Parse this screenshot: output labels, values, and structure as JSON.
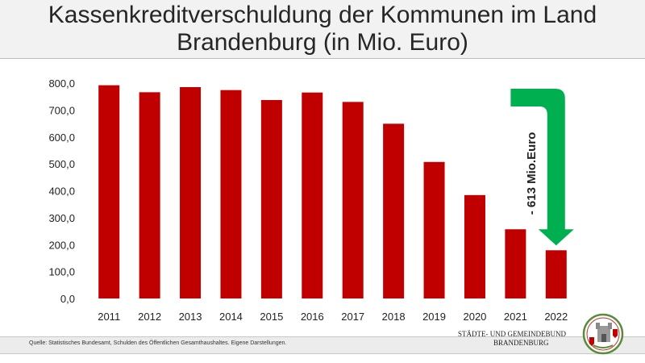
{
  "title": {
    "line1": "Kassenkreditverschuldung der Kommunen im Land",
    "line2": "Brandenburg (in Mio. Euro)"
  },
  "chart_data": {
    "type": "bar",
    "categories": [
      "2011",
      "2012",
      "2013",
      "2014",
      "2015",
      "2016",
      "2017",
      "2018",
      "2019",
      "2020",
      "2021",
      "2022"
    ],
    "values": [
      792,
      766,
      785,
      774,
      737,
      765,
      730,
      649,
      507,
      384,
      257,
      179
    ],
    "ylim": [
      0,
      800
    ],
    "yticks": [
      0,
      100,
      200,
      300,
      400,
      500,
      600,
      700,
      800
    ],
    "ytick_labels": [
      "0,0",
      "100,0",
      "200,0",
      "300,0",
      "400,0",
      "500,0",
      "600,0",
      "700,0",
      "800,0"
    ],
    "grid": false,
    "bar_color": "#c00000",
    "annotation": {
      "text": "- 613 Mio.Euro",
      "arrow_color": "#00b050",
      "from_category": "2021",
      "to_category": "2022"
    }
  },
  "footer": {
    "source": "Quelle: Statistisches Bundesamt, Schulden des Öffentlichen Gesamthaushaltes. Eigene Darstellungen.",
    "org_line1": "STÄDTE-  UND GEMEINDEBUND",
    "org_line2": "BRANDENBURG"
  }
}
